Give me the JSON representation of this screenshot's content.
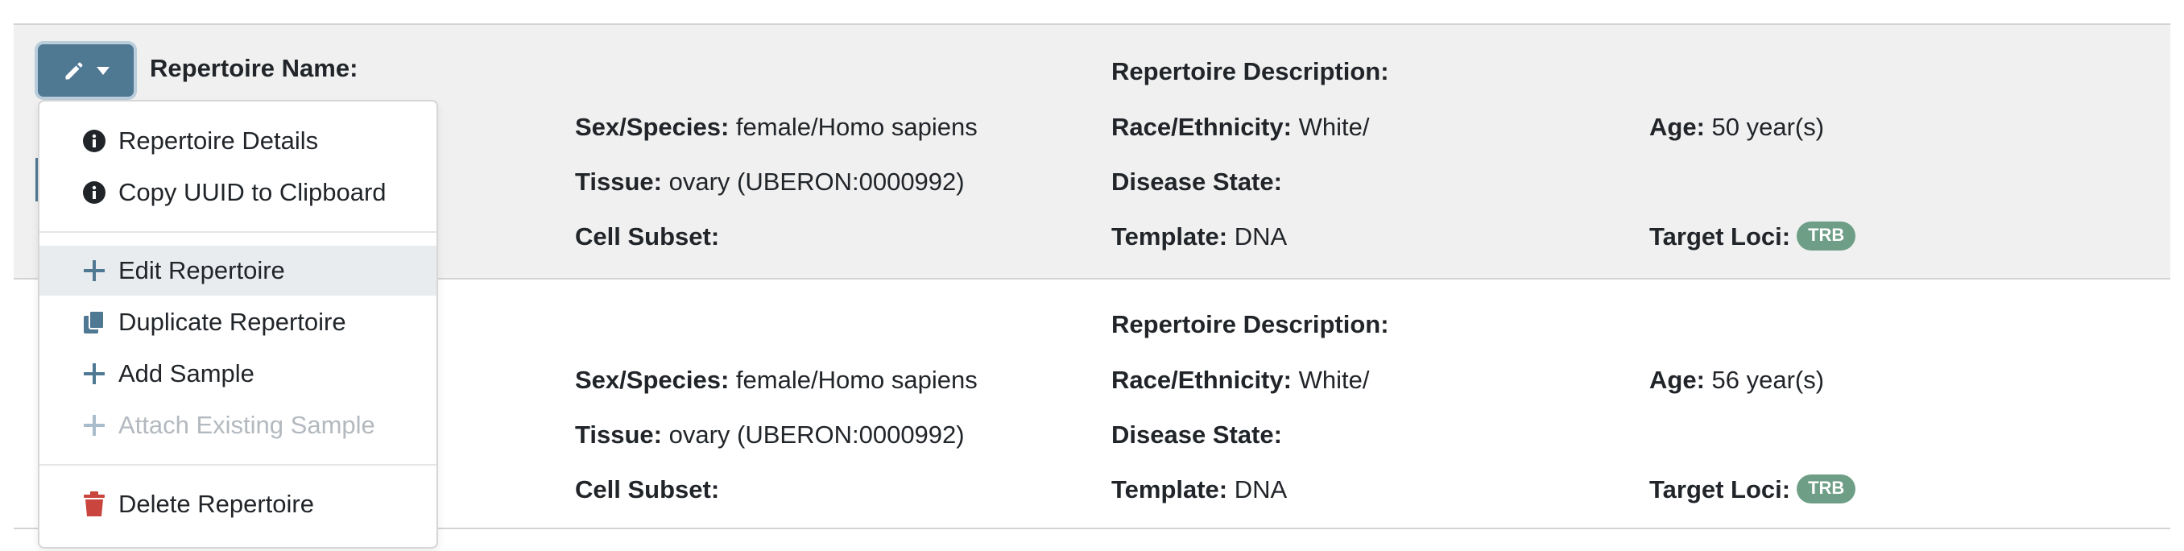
{
  "rows": [
    {
      "repertoire_name_label": "Repertoire Name:",
      "repertoire_description_label": "Repertoire Description:",
      "sex_species_label": "Sex/Species:",
      "sex_species_value": "female/Homo sapiens",
      "race_label": "Race/Ethnicity:",
      "race_value": "White/",
      "age_label": "Age:",
      "age_value": "50 year(s)",
      "tissue_label": "Tissue:",
      "tissue_value": "ovary (UBERON:0000992)",
      "disease_label": "Disease State:",
      "cell_subset_label": "Cell Subset:",
      "template_label": "Template:",
      "template_value": "DNA",
      "target_loci_label": "Target Loci:",
      "target_loci_badge": "TRB"
    },
    {
      "repertoire_description_label": "Repertoire Description:",
      "sex_species_label": "Sex/Species:",
      "sex_species_value": "female/Homo sapiens",
      "race_label": "Race/Ethnicity:",
      "race_value": "White/",
      "age_label": "Age:",
      "age_value": "56 year(s)",
      "tissue_label": "Tissue:",
      "tissue_value": "ovary (UBERON:0000992)",
      "disease_label": "Disease State:",
      "cell_subset_label": "Cell Subset:",
      "template_label": "Template:",
      "template_value": "DNA",
      "target_loci_label": "Target Loci:",
      "target_loci_badge": "TRB"
    }
  ],
  "action_button": {
    "icons": [
      "pencil-icon",
      "caret-down-icon"
    ]
  },
  "menu": {
    "items": [
      {
        "label": "Repertoire Details",
        "icon": "info-circle-icon",
        "state": "normal"
      },
      {
        "label": "Copy UUID to Clipboard",
        "icon": "info-circle-icon",
        "state": "normal"
      },
      {
        "label": "Edit Repertoire",
        "icon": "plus-icon",
        "state": "active"
      },
      {
        "label": "Duplicate Repertoire",
        "icon": "copy-icon",
        "state": "normal"
      },
      {
        "label": "Add Sample",
        "icon": "plus-icon",
        "state": "normal"
      },
      {
        "label": "Attach Existing Sample",
        "icon": "plus-icon",
        "state": "disabled"
      },
      {
        "label": "Delete Repertoire",
        "icon": "trash-icon",
        "state": "normal"
      }
    ]
  },
  "colors": {
    "button": "#4f7893",
    "badge": "#6e9e86",
    "plus_icon": "#4f7893",
    "trash_icon": "#c9453d",
    "row_stripe": "#f0f0f0"
  }
}
